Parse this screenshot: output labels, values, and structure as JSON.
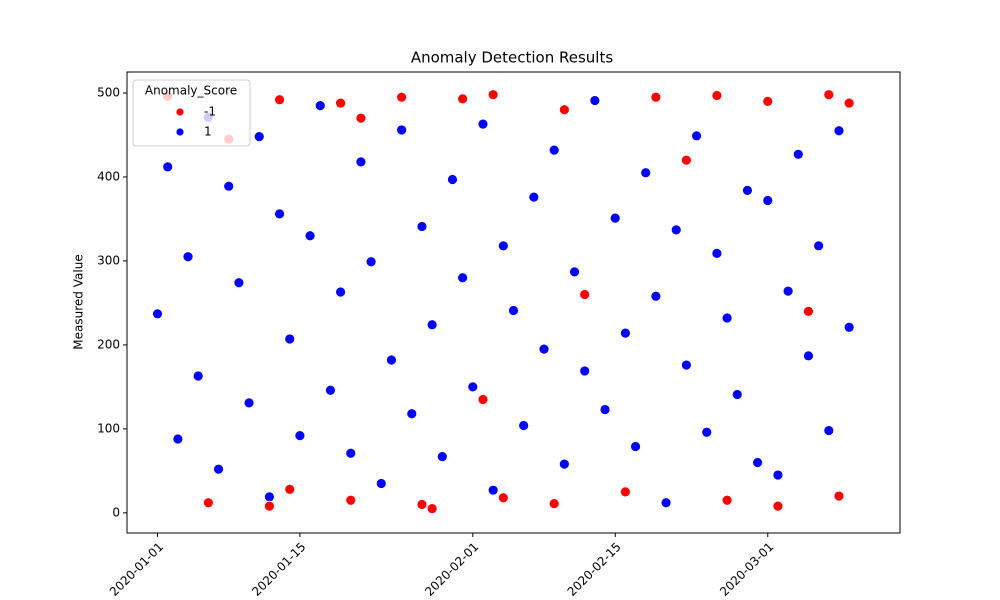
{
  "chart_data": {
    "type": "scatter",
    "title": "Anomaly Detection Results",
    "y_label": "Measured Value",
    "legend_title": "Anomaly_Score",
    "legend": "upper left",
    "xlim": [
      "2019-12-29",
      "2020-03-14"
    ],
    "xticks": [
      "2020-01-01",
      "2020-01-15",
      "2020-02-01",
      "2020-02-15",
      "2020-03-01"
    ],
    "ylim": [
      -24,
      525
    ],
    "yticks": [
      0,
      100,
      200,
      300,
      400,
      500
    ],
    "series": [
      {
        "name": "-1",
        "color": "#ff0000",
        "x": [
          "2020-01-02",
          "2020-01-06",
          "2020-01-08",
          "2020-01-12",
          "2020-01-13",
          "2020-01-14",
          "2020-01-19",
          "2020-01-20",
          "2020-01-21",
          "2020-01-25",
          "2020-01-27",
          "2020-01-28",
          "2020-01-31",
          "2020-02-02",
          "2020-02-03",
          "2020-02-04",
          "2020-02-09",
          "2020-02-10",
          "2020-02-12",
          "2020-02-16",
          "2020-02-19",
          "2020-02-22",
          "2020-02-25",
          "2020-02-26",
          "2020-03-01",
          "2020-03-02",
          "2020-03-05",
          "2020-03-07",
          "2020-03-08",
          "2020-03-09"
        ],
        "values": [
          496,
          12,
          445,
          8,
          492,
          28,
          488,
          15,
          470,
          495,
          10,
          5,
          493,
          135,
          498,
          18,
          11,
          480,
          260,
          25,
          495,
          420,
          497,
          15,
          490,
          8,
          240,
          498,
          20,
          488
        ]
      },
      {
        "name": "1",
        "color": "#0000ff",
        "x": [
          "2020-01-01",
          "2020-01-02",
          "2020-01-03",
          "2020-01-04",
          "2020-01-05",
          "2020-01-06",
          "2020-01-07",
          "2020-01-08",
          "2020-01-09",
          "2020-01-10",
          "2020-01-11",
          "2020-01-12",
          "2020-01-13",
          "2020-01-14",
          "2020-01-15",
          "2020-01-16",
          "2020-01-17",
          "2020-01-18",
          "2020-01-19",
          "2020-01-20",
          "2020-01-21",
          "2020-01-22",
          "2020-01-23",
          "2020-01-24",
          "2020-01-25",
          "2020-01-26",
          "2020-01-27",
          "2020-01-28",
          "2020-01-29",
          "2020-01-30",
          "2020-01-31",
          "2020-02-01",
          "2020-02-02",
          "2020-02-03",
          "2020-02-04",
          "2020-02-05",
          "2020-02-06",
          "2020-02-07",
          "2020-02-08",
          "2020-02-09",
          "2020-02-10",
          "2020-02-11",
          "2020-02-12",
          "2020-02-13",
          "2020-02-14",
          "2020-02-15",
          "2020-02-16",
          "2020-02-17",
          "2020-02-18",
          "2020-02-19",
          "2020-02-20",
          "2020-02-21",
          "2020-02-22",
          "2020-02-23",
          "2020-02-24",
          "2020-02-25",
          "2020-02-26",
          "2020-02-27",
          "2020-02-28",
          "2020-02-29",
          "2020-03-01",
          "2020-03-02",
          "2020-03-03",
          "2020-03-04",
          "2020-03-05",
          "2020-03-06",
          "2020-03-07",
          "2020-03-08",
          "2020-03-09"
        ],
        "values": [
          237,
          412,
          88,
          305,
          163,
          471,
          52,
          389,
          274,
          131,
          448,
          19,
          356,
          207,
          92,
          330,
          485,
          146,
          263,
          71,
          418,
          299,
          35,
          182,
          456,
          118,
          341,
          224,
          67,
          397,
          280,
          150,
          463,
          27,
          318,
          241,
          104,
          376,
          195,
          432,
          58,
          287,
          169,
          491,
          123,
          351,
          214,
          79,
          405,
          258,
          12,
          337,
          176,
          449,
          96,
          309,
          232,
          141,
          384,
          60,
          372,
          45,
          264,
          427,
          187,
          318,
          98,
          455,
          221
        ]
      }
    ]
  }
}
